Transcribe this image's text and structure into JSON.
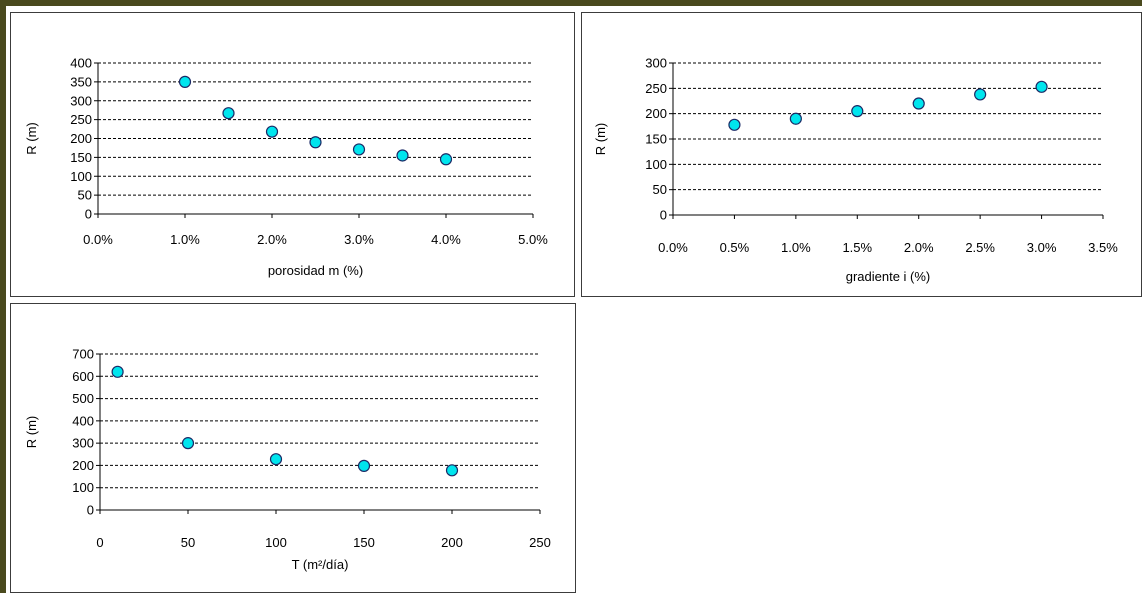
{
  "colors": {
    "marker_fill": "#00e5ee",
    "marker_stroke": "#1b2a66",
    "gridline": "#000000",
    "frame": "#4a4a1e",
    "panel_border": "#3c3c3c"
  },
  "chart_data": [
    {
      "type": "scatter",
      "title": "",
      "xlabel": "porosidad m (%)",
      "ylabel": "R (m)",
      "xlim": [
        0.0,
        0.05
      ],
      "ylim": [
        0,
        400
      ],
      "x_ticks": [
        0.0,
        0.01,
        0.02,
        0.03,
        0.04,
        0.05
      ],
      "x_tick_labels": [
        "0.0%",
        "1.0%",
        "2.0%",
        "3.0%",
        "4.0%",
        "5.0%"
      ],
      "y_ticks": [
        0,
        50,
        100,
        150,
        200,
        250,
        300,
        350,
        400
      ],
      "y_tick_labels": [
        "0",
        "50",
        "100",
        "150",
        "200",
        "250",
        "300",
        "350",
        "400"
      ],
      "gridlines": "horizontal dashed",
      "legend": "none",
      "series": [
        {
          "x": [
            0.01,
            0.015,
            0.02,
            0.025,
            0.03,
            0.035,
            0.04
          ],
          "y": [
            350,
            267,
            218,
            190,
            171,
            155,
            145
          ]
        }
      ]
    },
    {
      "type": "scatter",
      "title": "",
      "xlabel": "gradiente  i (%)",
      "ylabel": "R (m)",
      "xlim": [
        0.0,
        0.035
      ],
      "ylim": [
        0,
        300
      ],
      "x_ticks": [
        0.0,
        0.005,
        0.01,
        0.015,
        0.02,
        0.025,
        0.03,
        0.035
      ],
      "x_tick_labels": [
        "0.0%",
        "0.5%",
        "1.0%",
        "1.5%",
        "2.0%",
        "2.5%",
        "3.0%",
        "3.5%"
      ],
      "y_ticks": [
        0,
        50,
        100,
        150,
        200,
        250,
        300
      ],
      "y_tick_labels": [
        "0",
        "50",
        "100",
        "150",
        "200",
        "250",
        "300"
      ],
      "gridlines": "horizontal dashed",
      "legend": "none",
      "series": [
        {
          "x": [
            0.005,
            0.01,
            0.015,
            0.02,
            0.025,
            0.03
          ],
          "y": [
            178,
            190,
            205,
            220,
            238,
            253
          ]
        }
      ]
    },
    {
      "type": "scatter",
      "title": "",
      "xlabel": "T (m²/día)",
      "ylabel": "R (m)",
      "xlim": [
        0,
        250
      ],
      "ylim": [
        0,
        700
      ],
      "x_ticks": [
        0,
        50,
        100,
        150,
        200,
        250
      ],
      "x_tick_labels": [
        "0",
        "50",
        "100",
        "150",
        "200",
        "250"
      ],
      "y_ticks": [
        0,
        100,
        200,
        300,
        400,
        500,
        600,
        700
      ],
      "y_tick_labels": [
        "0",
        "100",
        "200",
        "300",
        "400",
        "500",
        "600",
        "700"
      ],
      "gridlines": "horizontal dashed",
      "legend": "none",
      "series": [
        {
          "x": [
            10,
            50,
            100,
            150,
            200
          ],
          "y": [
            620,
            300,
            228,
            198,
            178
          ]
        }
      ]
    }
  ]
}
